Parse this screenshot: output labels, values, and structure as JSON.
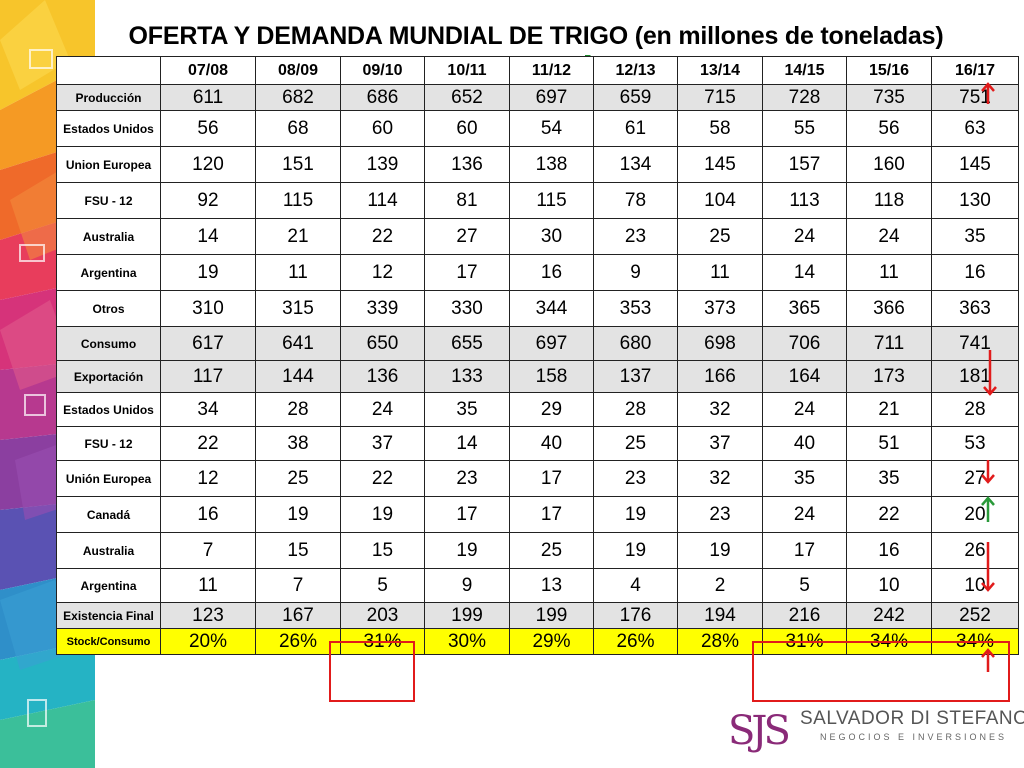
{
  "title": "OFERTA Y DEMANDA MUNDIAL DE TRIGO (en millones de toneladas)",
  "columns": [
    "07/08",
    "08/09",
    "09/10",
    "10/11",
    "11/12",
    "12/13",
    "13/14",
    "14/15",
    "15/16",
    "16/17"
  ],
  "rows": [
    {
      "label": "Producción",
      "values": [
        "611",
        "682",
        "686",
        "652",
        "697",
        "659",
        "715",
        "728",
        "735",
        "751"
      ]
    },
    {
      "label": "Estados Unidos",
      "values": [
        "56",
        "68",
        "60",
        "60",
        "54",
        "61",
        "58",
        "55",
        "56",
        "63"
      ]
    },
    {
      "label": "Union Europea",
      "values": [
        "120",
        "151",
        "139",
        "136",
        "138",
        "134",
        "145",
        "157",
        "160",
        "145"
      ]
    },
    {
      "label": "FSU - 12",
      "values": [
        "92",
        "115",
        "114",
        "81",
        "115",
        "78",
        "104",
        "113",
        "118",
        "130"
      ]
    },
    {
      "label": "Australia",
      "values": [
        "14",
        "21",
        "22",
        "27",
        "30",
        "23",
        "25",
        "24",
        "24",
        "35"
      ]
    },
    {
      "label": "Argentina",
      "values": [
        "19",
        "11",
        "12",
        "17",
        "16",
        "9",
        "11",
        "14",
        "11",
        "16"
      ]
    },
    {
      "label": "Otros",
      "values": [
        "310",
        "315",
        "339",
        "330",
        "344",
        "353",
        "373",
        "365",
        "366",
        "363"
      ]
    },
    {
      "label": "Consumo",
      "values": [
        "617",
        "641",
        "650",
        "655",
        "697",
        "680",
        "698",
        "706",
        "711",
        "741"
      ]
    },
    {
      "label": "Exportación",
      "values": [
        "117",
        "144",
        "136",
        "133",
        "158",
        "137",
        "166",
        "164",
        "173",
        "181"
      ]
    },
    {
      "label": "Estados Unidos",
      "values": [
        "34",
        "28",
        "24",
        "35",
        "29",
        "28",
        "32",
        "24",
        "21",
        "28"
      ]
    },
    {
      "label": "FSU - 12",
      "values": [
        "22",
        "38",
        "37",
        "14",
        "40",
        "25",
        "37",
        "40",
        "51",
        "53"
      ]
    },
    {
      "label": "Unión Europea",
      "values": [
        "12",
        "25",
        "22",
        "23",
        "17",
        "23",
        "32",
        "35",
        "35",
        "27"
      ]
    },
    {
      "label": "Canadá",
      "values": [
        "16",
        "19",
        "19",
        "17",
        "17",
        "19",
        "23",
        "24",
        "22",
        "20"
      ]
    },
    {
      "label": "Australia",
      "values": [
        "7",
        "15",
        "15",
        "19",
        "25",
        "19",
        "19",
        "17",
        "16",
        "26"
      ]
    },
    {
      "label": "Argentina",
      "values": [
        "11",
        "7",
        "5",
        "9",
        "13",
        "4",
        "2",
        "5",
        "10",
        "10"
      ]
    },
    {
      "label": "Existencia Final",
      "values": [
        "123",
        "167",
        "203",
        "199",
        "199",
        "176",
        "194",
        "216",
        "242",
        "252"
      ]
    },
    {
      "label": "Stock/Consumo",
      "values": [
        "20%",
        "26%",
        "31%",
        "30%",
        "29%",
        "26%",
        "28%",
        "31%",
        "34%",
        "34%"
      ]
    }
  ],
  "trend_arrows": [
    {
      "row": "Producción",
      "direction": "up",
      "color": "#e11b1b"
    },
    {
      "row": "Consumo",
      "direction": "down",
      "color": "#e11b1b"
    },
    {
      "row": "FSU - 12",
      "direction": "down",
      "color": "#e11b1b"
    },
    {
      "row": "Unión Europea",
      "direction": "up",
      "color": "#2a9a3a"
    },
    {
      "row": "Canadá",
      "direction": "down",
      "color": "#e11b1b"
    },
    {
      "row": "Existencia Final",
      "direction": "up",
      "color": "#e11b1b"
    }
  ],
  "highlight_color": "#e11b1b",
  "stock_row_color": "#ffff00",
  "logo": {
    "mark": "SJS",
    "name": "SALVADOR DI STEFANO",
    "tagline": "NEGOCIOS E INVERSIONES"
  }
}
